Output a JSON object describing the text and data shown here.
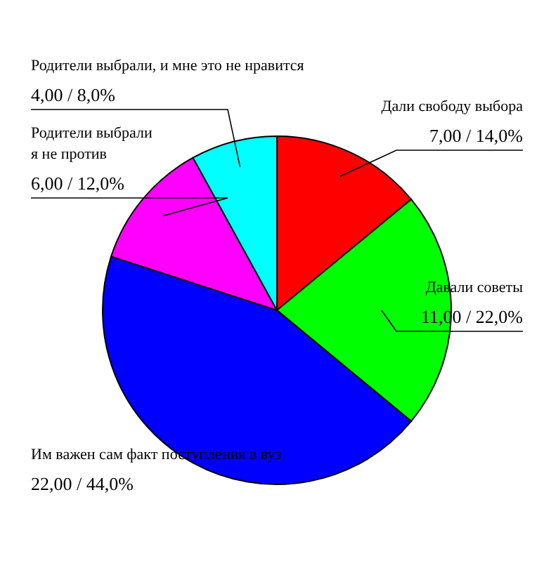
{
  "chart_data": {
    "type": "pie",
    "categories": [
      "Дали свободу выбора",
      "Давали советы",
      "Им важен сам факт поступления в вуз",
      "Родители выбрали\nя не против",
      "Родители выбрали, и мне это не нравится"
    ],
    "values": [
      7,
      11,
      22,
      6,
      4
    ],
    "colors": [
      "#ff0000",
      "#00ff00",
      "#0000ff",
      "#ff00ff",
      "#00ffff"
    ],
    "value_labels": [
      "7,00 / 14,0%",
      "11,00 / 22,0%",
      "22,00 / 44,0%",
      "6,00 / 12,0%",
      "4,00 / 8,0%"
    ]
  }
}
